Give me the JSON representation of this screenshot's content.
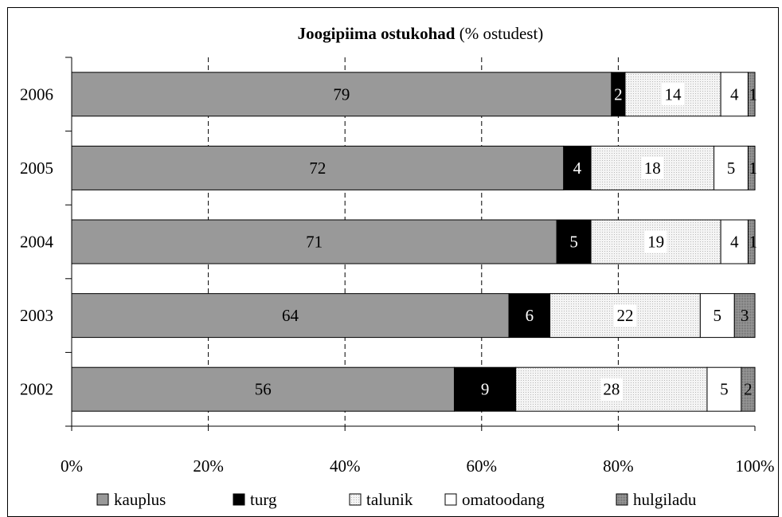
{
  "chart_data": {
    "type": "bar",
    "orientation": "horizontal",
    "stacked": true,
    "title_bold": "Joogipiima ostukohad",
    "title_rest": " (% ostudest)",
    "categories": [
      "2006",
      "2005",
      "2004",
      "2003",
      "2002"
    ],
    "series": [
      {
        "name": "kauplus",
        "values": [
          79,
          72,
          71,
          64,
          56
        ],
        "color": "#999999",
        "pattern": "solid"
      },
      {
        "name": "turg",
        "values": [
          2,
          4,
          5,
          6,
          9
        ],
        "color": "#000000",
        "pattern": "solid"
      },
      {
        "name": "talunik",
        "values": [
          14,
          18,
          19,
          22,
          28
        ],
        "color": "#f3f3f3",
        "pattern": "dots"
      },
      {
        "name": "omatoodang",
        "values": [
          4,
          5,
          4,
          5,
          5
        ],
        "color": "#ffffff",
        "pattern": "solid"
      },
      {
        "name": "hulgiladu",
        "values": [
          1,
          1,
          1,
          3,
          2
        ],
        "color": "#8a8a8a",
        "pattern": "dense"
      }
    ],
    "xticks": [
      "0%",
      "20%",
      "40%",
      "60%",
      "80%",
      "100%"
    ],
    "xlim": [
      0,
      100
    ],
    "grid": "vertical dashed",
    "legend_position": "bottom"
  }
}
